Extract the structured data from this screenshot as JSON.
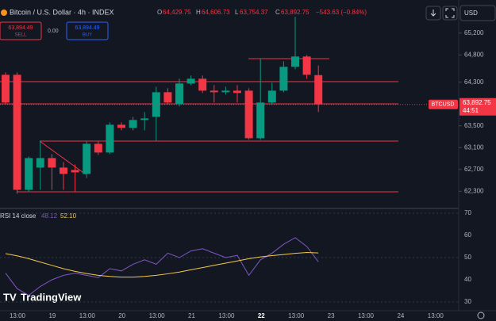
{
  "header": {
    "title": "Bitcoin / U.S. Dollar · 4h · INDEX",
    "o_label": "O",
    "o": "64,429.75",
    "h_label": "H",
    "h": "64,606.73",
    "l_label": "L",
    "l": "63,754.37",
    "c_label": "C",
    "c": "63,892.75",
    "change": "−543.63 (−0.84%)"
  },
  "trade": {
    "sell_price": "63,894.49",
    "sell": "SELL",
    "spread": "0.00",
    "buy_price": "63,894.49",
    "buy": "BUY"
  },
  "currency": "USD",
  "watermark": "TradingView",
  "time_axis": [
    "13:00",
    "19",
    "13:00",
    "20",
    "13:00",
    "21",
    "13:00",
    "22",
    "13:00",
    "23",
    "13:00",
    "24",
    "13:00"
  ],
  "chart_data": [
    {
      "type": "candlestick",
      "up_color": "#089981",
      "down_color": "#f23645",
      "open": [
        64436,
        64436,
        62327,
        62735,
        62909,
        62735,
        62691,
        62618,
        63171,
        63011,
        63520,
        63462,
        63607,
        63665,
        64116,
        63898,
        64276,
        64364,
        64145,
        64116,
        64145,
        64145,
        63273,
        63927,
        64145,
        64582,
        64771,
        64429.75
      ],
      "high": [
        64480,
        64480,
        62938,
        63229,
        62982,
        62836,
        62793,
        63229,
        63229,
        63564,
        63564,
        63665,
        63753,
        64218,
        64189,
        64364,
        64422,
        64422,
        64247,
        64218,
        64247,
        64189,
        64727,
        64291,
        64684,
        65498,
        64800,
        64606.73
      ],
      "low": [
        63898,
        62255,
        62284,
        62327,
        62327,
        62327,
        62298,
        62545,
        62967,
        62982,
        63418,
        63418,
        63418,
        63229,
        63898,
        63855,
        64247,
        64102,
        63927,
        64073,
        63927,
        63244,
        63244,
        63884,
        64116,
        64538,
        64364,
        63754.37
      ],
      "close": [
        63927,
        62327,
        62909,
        62909,
        62735,
        62618,
        62647,
        63171,
        63011,
        63520,
        63462,
        63607,
        63636,
        64116,
        63927,
        64276,
        64364,
        64145,
        64116,
        64145,
        64102,
        63273,
        63927,
        64145,
        64582,
        64771,
        64436,
        63892.75
      ],
      "ylim": [
        62000,
        65400
      ],
      "yticks": [
        {
          "value": 65200,
          "label": "65,200"
        },
        {
          "value": 64800,
          "label": "64,800"
        },
        {
          "value": 64300,
          "label": "64,300"
        },
        {
          "value": 63500,
          "label": "63,500"
        },
        {
          "value": 63100,
          "label": "63,100"
        },
        {
          "value": 62700,
          "label": "62,700"
        },
        {
          "value": 62300,
          "label": "62,300"
        }
      ],
      "price_label": {
        "symbol": "BTCUSD",
        "value": 63892.75,
        "label": "63,892.75",
        "countdown": "44:51"
      }
    },
    {
      "type": "line",
      "title": "RSI 14 close",
      "legend_values": [
        "48.12",
        "52.10"
      ],
      "series": [
        {
          "color": "#7e57c2",
          "values": [
            43,
            36,
            33,
            37,
            40,
            42,
            43,
            42,
            41,
            45,
            44,
            47,
            49,
            47,
            52,
            50,
            53,
            54,
            52,
            50,
            51,
            42,
            49,
            52,
            56,
            59,
            55,
            48.12
          ]
        },
        {
          "color": "#f7c948",
          "values": [
            51.8,
            50.8,
            49.5,
            48,
            46.5,
            45,
            43.8,
            42.8,
            42,
            41.5,
            41.2,
            41.2,
            41.5,
            42,
            42.7,
            43.5,
            44.5,
            45.5,
            46.5,
            47.5,
            48.5,
            49.5,
            50.3,
            50.9,
            51.4,
            51.9,
            52.3,
            52.1
          ]
        }
      ],
      "ylim": [
        30,
        70
      ],
      "yticks": [
        70,
        60,
        50,
        40,
        30
      ]
    }
  ]
}
